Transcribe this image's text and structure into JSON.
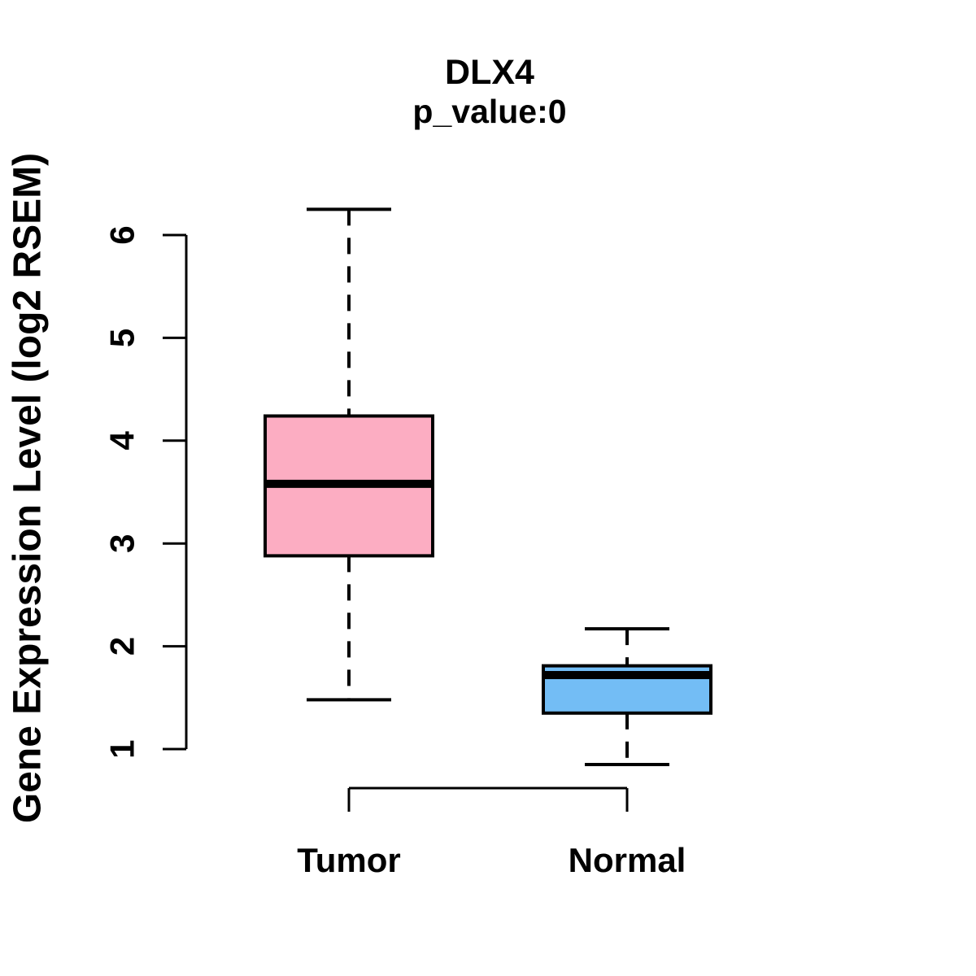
{
  "header": {
    "title": "DLX4",
    "subtitle": "p_value:0"
  },
  "colors": {
    "background": "#FFFFFF",
    "text": "#000000",
    "stroke": "#000000",
    "tumor_fill": "#FCADC2",
    "normal_fill": "#73BDF5"
  },
  "chart_data": {
    "type": "boxplot",
    "title": "DLX4",
    "subtitle": "p_value:0",
    "xlabel": "",
    "ylabel": "Gene Expression Level (log2 RSEM)",
    "grid": false,
    "legend": "none",
    "yticks": [
      1,
      2,
      3,
      4,
      5,
      6
    ],
    "ylim": [
      0.7,
      6.4
    ],
    "categories": [
      "Tumor",
      "Normal"
    ],
    "groups": [
      {
        "label": "Tumor",
        "fill": "#FCADC2",
        "whisker_low": 1.48,
        "q1": 2.88,
        "median": 3.58,
        "q3": 4.24,
        "whisker_high": 6.25
      },
      {
        "label": "Normal",
        "fill": "#73BDF5",
        "whisker_low": 0.85,
        "q1": 1.35,
        "median": 1.72,
        "q3": 1.81,
        "whisker_high": 2.17
      }
    ]
  }
}
